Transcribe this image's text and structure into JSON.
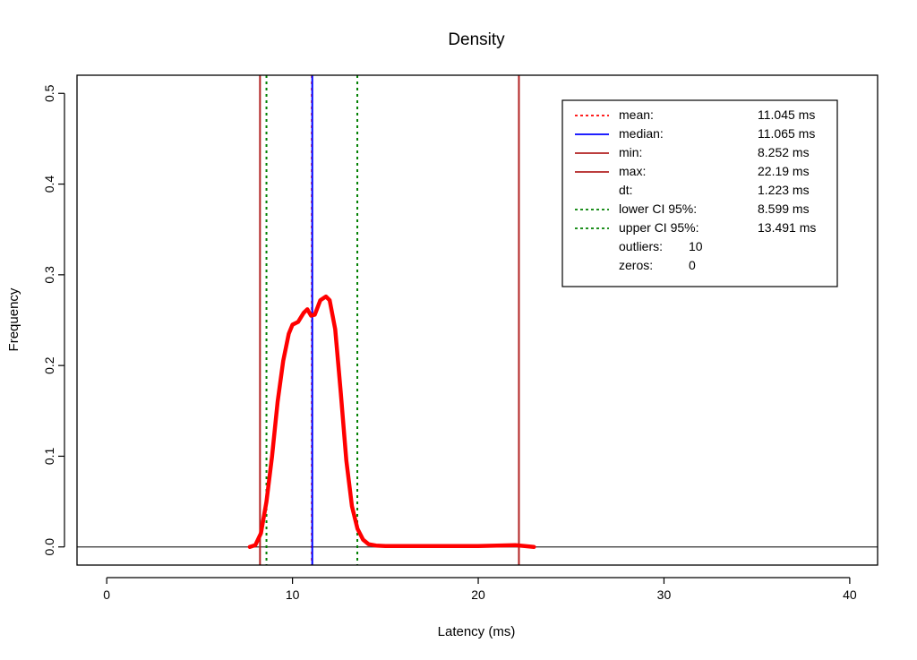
{
  "chart_data": {
    "type": "line",
    "title": "Density",
    "xlabel": "Latency (ms)",
    "ylabel": "Frequency",
    "xlim": [
      -1.6,
      41.5
    ],
    "ylim": [
      -0.02,
      0.52
    ],
    "x_ticks": [
      0,
      10,
      20,
      30,
      40
    ],
    "y_ticks": [
      0.0,
      0.1,
      0.2,
      0.3,
      0.4,
      0.5
    ],
    "x_tick_labels": [
      "0",
      "10",
      "20",
      "30",
      "40"
    ],
    "y_tick_labels": [
      "0.0",
      "0.1",
      "0.2",
      "0.3",
      "0.4",
      "0.5"
    ],
    "grid": false,
    "baseline": 0.0,
    "series": [
      {
        "color": "#ff0000",
        "x": [
          7.7,
          8.0,
          8.3,
          8.6,
          8.9,
          9.2,
          9.5,
          9.8,
          10.0,
          10.3,
          10.6,
          10.8,
          11.0,
          11.2,
          11.5,
          11.8,
          12.0,
          12.3,
          12.6,
          12.9,
          13.2,
          13.5,
          13.8,
          14.1,
          14.5,
          15.0,
          16.0,
          18.0,
          20.0,
          22.0,
          22.5,
          23.0
        ],
        "y": [
          0.0,
          0.002,
          0.015,
          0.05,
          0.1,
          0.16,
          0.205,
          0.235,
          0.245,
          0.248,
          0.258,
          0.262,
          0.255,
          0.256,
          0.272,
          0.276,
          0.272,
          0.24,
          0.17,
          0.095,
          0.045,
          0.02,
          0.008,
          0.003,
          0.0015,
          0.001,
          0.001,
          0.001,
          0.001,
          0.002,
          0.001,
          0.0
        ]
      }
    ],
    "vertical_lines": [
      {
        "name": "mean",
        "x": 11.045,
        "color": "#ff0000",
        "style": "dotted"
      },
      {
        "name": "median",
        "x": 11.065,
        "color": "#0000ff",
        "style": "solid"
      },
      {
        "name": "min",
        "x": 8.252,
        "color": "#b22222",
        "style": "solid"
      },
      {
        "name": "max",
        "x": 22.19,
        "color": "#b22222",
        "style": "solid"
      },
      {
        "name": "lower-ci",
        "x": 8.599,
        "color": "#008000",
        "style": "dotted"
      },
      {
        "name": "upper-ci",
        "x": 13.491,
        "color": "#008000",
        "style": "dotted"
      }
    ],
    "legend_position": "top-right",
    "legend": [
      {
        "label": "mean:",
        "value": "11.045 ms",
        "line_color": "#ff0000",
        "line_style": "dotted"
      },
      {
        "label": "median:",
        "value": "11.065 ms",
        "line_color": "#0000ff",
        "line_style": "solid"
      },
      {
        "label": "min:",
        "value": "8.252 ms",
        "line_color": "#b22222",
        "line_style": "solid"
      },
      {
        "label": "max:",
        "value": "22.19 ms",
        "line_color": "#b22222",
        "line_style": "solid"
      },
      {
        "label": "dt:",
        "value": "1.223 ms",
        "line_color": "",
        "line_style": "none"
      },
      {
        "label": "lower CI 95%:",
        "value": "8.599 ms",
        "line_color": "#008000",
        "line_style": "dotted"
      },
      {
        "label": "upper CI 95%:",
        "value": "13.491 ms",
        "line_color": "#008000",
        "line_style": "dotted"
      },
      {
        "label": "outliers:",
        "value": "10",
        "line_color": "",
        "line_style": "none",
        "inline": true
      },
      {
        "label": "zeros:",
        "value": "0",
        "line_color": "",
        "line_style": "none",
        "inline": true
      }
    ]
  }
}
